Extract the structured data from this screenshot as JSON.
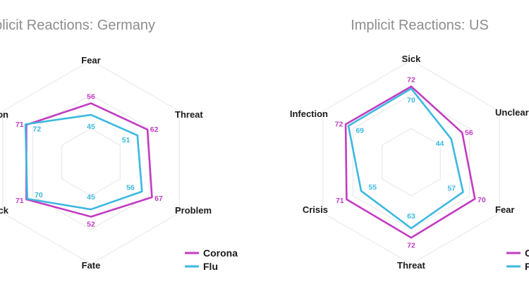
{
  "colors": {
    "corona": "#c23cc2",
    "flu": "#3cb8e0",
    "grid": "#e6e6e6"
  },
  "chart_data": [
    {
      "type": "radar",
      "title": "Implicit Reactions: Germany",
      "axes": [
        "Fear",
        "Threat",
        "Problem",
        "Fate",
        "Shock",
        "Infection"
      ],
      "axis_labels_visible": [
        "Fear",
        "Threat",
        "Problem",
        "Fate",
        "ck",
        "on"
      ],
      "rmax": 100,
      "grid": true,
      "series": [
        {
          "name": "Corona",
          "values": [
            56,
            62,
            67,
            52,
            71,
            71
          ]
        },
        {
          "name": "Flu",
          "values": [
            45,
            51,
            56,
            45,
            70,
            72
          ]
        }
      ],
      "legend": [
        "Corona",
        "Flu"
      ],
      "legend_position": "bottom-right"
    },
    {
      "type": "radar",
      "title": "Implicit Reactions: US",
      "axes": [
        "Sick",
        "Unclear",
        "Fear",
        "Threat",
        "Crisis",
        "Infection"
      ],
      "rmax": 100,
      "grid": true,
      "series": [
        {
          "name": "Corona",
          "values": [
            72,
            56,
            70,
            72,
            71,
            72
          ]
        },
        {
          "name": "Flu",
          "values": [
            70,
            44,
            57,
            63,
            55,
            69
          ]
        }
      ],
      "legend": [
        "C",
        "F"
      ],
      "legend_position": "bottom-right"
    }
  ]
}
